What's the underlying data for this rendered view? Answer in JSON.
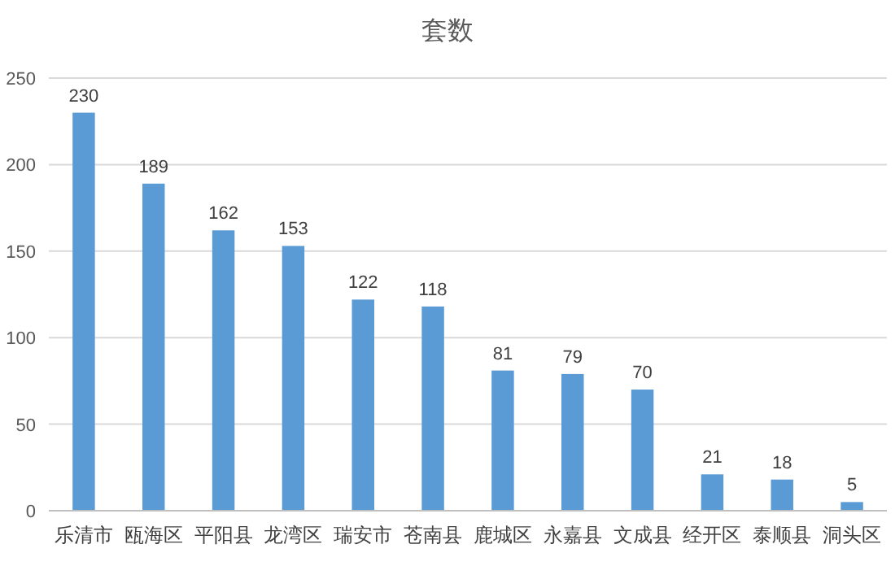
{
  "chart_data": {
    "type": "bar",
    "title": "套数",
    "categories": [
      "乐清市",
      "瓯海区",
      "平阳县",
      "龙湾区",
      "瑞安市",
      "苍南县",
      "鹿城区",
      "永嘉县",
      "文成县",
      "经开区",
      "泰顺县",
      "洞头区"
    ],
    "values": [
      230,
      189,
      162,
      153,
      122,
      118,
      81,
      79,
      70,
      21,
      18,
      5
    ],
    "color": "#5b9bd5",
    "ylim": [
      0,
      250
    ],
    "yticks": [
      0,
      50,
      100,
      150,
      200,
      250
    ],
    "grid": "y",
    "data_labels": true
  }
}
